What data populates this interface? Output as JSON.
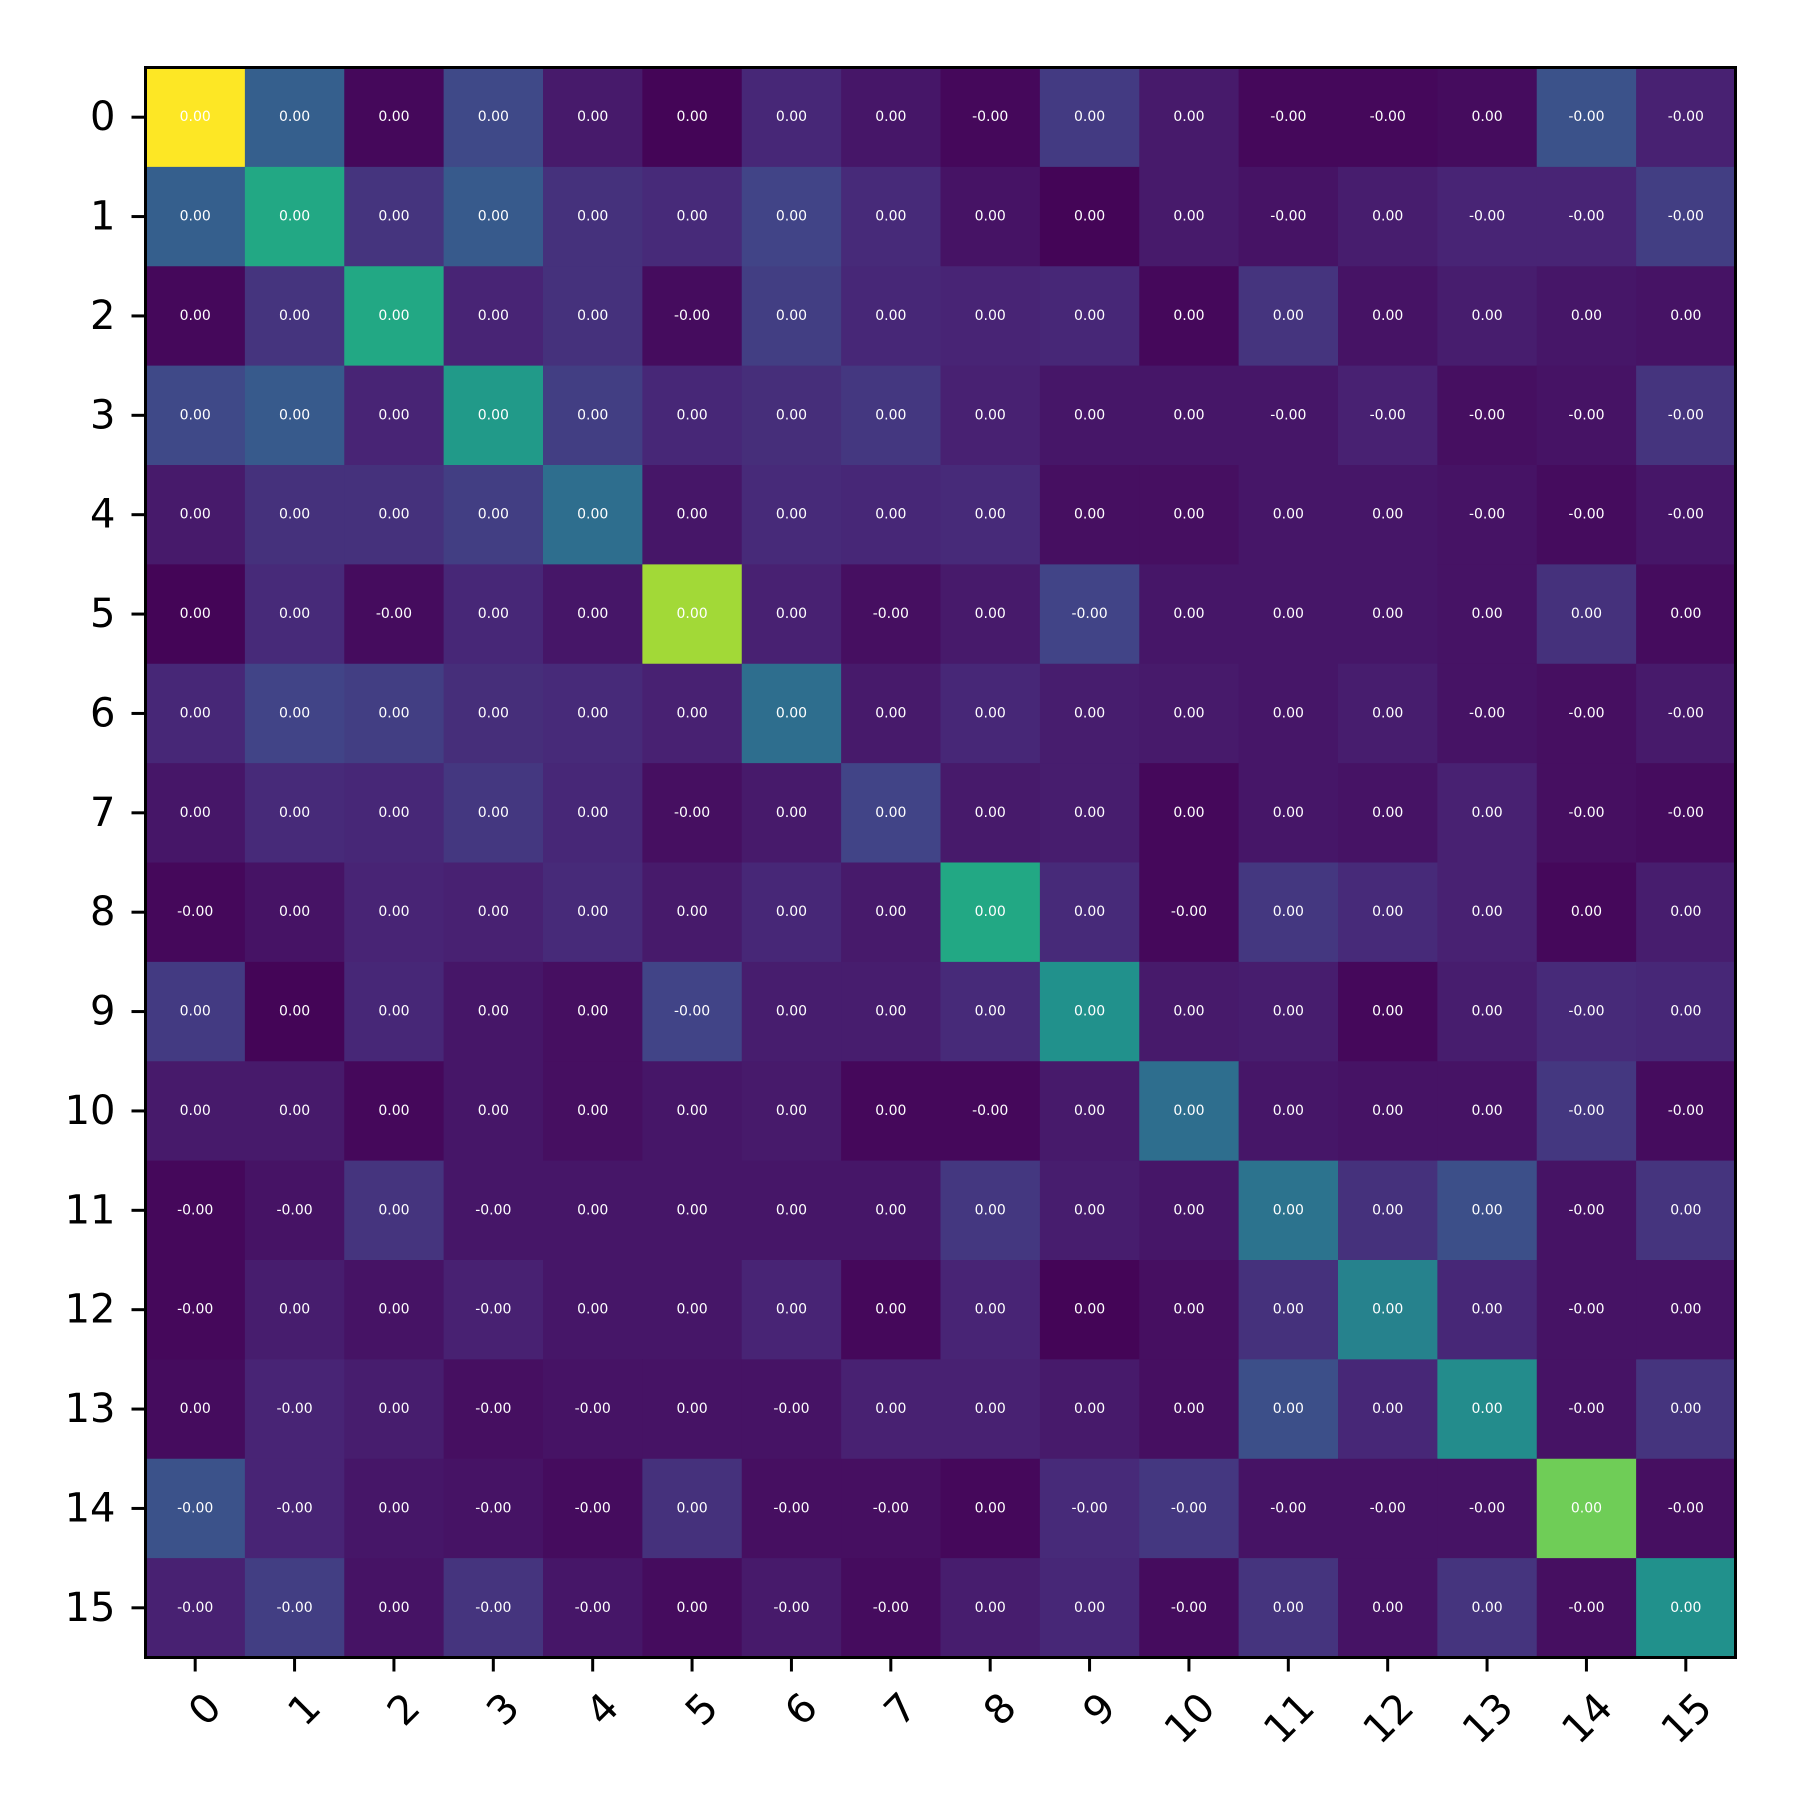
{
  "chart_data": {
    "type": "heatmap",
    "title": "",
    "xlabel": "",
    "ylabel": "",
    "x_categories": [
      "0",
      "1",
      "2",
      "3",
      "4",
      "5",
      "6",
      "7",
      "8",
      "9",
      "10",
      "11",
      "12",
      "13",
      "14",
      "15"
    ],
    "y_categories": [
      "0",
      "1",
      "2",
      "3",
      "4",
      "5",
      "6",
      "7",
      "8",
      "9",
      "10",
      "11",
      "12",
      "13",
      "14",
      "15"
    ],
    "colormap": "viridis",
    "color_intensity": [
      [
        1.0,
        0.3,
        0.02,
        0.22,
        0.07,
        0.01,
        0.11,
        0.06,
        0.02,
        0.17,
        0.07,
        0.02,
        0.02,
        0.03,
        0.25,
        0.09
      ],
      [
        0.3,
        0.6,
        0.15,
        0.28,
        0.14,
        0.12,
        0.2,
        0.12,
        0.05,
        0.01,
        0.07,
        0.05,
        0.08,
        0.1,
        0.1,
        0.18
      ],
      [
        0.02,
        0.15,
        0.6,
        0.1,
        0.14,
        0.03,
        0.18,
        0.11,
        0.1,
        0.11,
        0.02,
        0.15,
        0.05,
        0.08,
        0.06,
        0.05
      ],
      [
        0.22,
        0.28,
        0.1,
        0.54,
        0.18,
        0.11,
        0.13,
        0.16,
        0.09,
        0.06,
        0.06,
        0.06,
        0.09,
        0.04,
        0.05,
        0.15
      ],
      [
        0.07,
        0.14,
        0.14,
        0.18,
        0.36,
        0.06,
        0.12,
        0.11,
        0.12,
        0.04,
        0.04,
        0.06,
        0.06,
        0.05,
        0.03,
        0.06
      ],
      [
        0.01,
        0.12,
        0.03,
        0.11,
        0.06,
        0.86,
        0.09,
        0.04,
        0.07,
        0.2,
        0.06,
        0.06,
        0.06,
        0.05,
        0.14,
        0.03
      ],
      [
        0.11,
        0.2,
        0.18,
        0.13,
        0.12,
        0.09,
        0.36,
        0.07,
        0.11,
        0.08,
        0.07,
        0.06,
        0.08,
        0.05,
        0.04,
        0.07
      ],
      [
        0.06,
        0.12,
        0.11,
        0.16,
        0.11,
        0.04,
        0.07,
        0.2,
        0.07,
        0.08,
        0.02,
        0.06,
        0.05,
        0.09,
        0.04,
        0.03
      ],
      [
        0.02,
        0.05,
        0.1,
        0.09,
        0.12,
        0.07,
        0.11,
        0.07,
        0.6,
        0.12,
        0.02,
        0.16,
        0.12,
        0.09,
        0.02,
        0.08
      ],
      [
        0.17,
        0.01,
        0.11,
        0.06,
        0.04,
        0.2,
        0.08,
        0.08,
        0.12,
        0.5,
        0.07,
        0.08,
        0.02,
        0.08,
        0.12,
        0.11
      ],
      [
        0.07,
        0.07,
        0.02,
        0.06,
        0.04,
        0.06,
        0.07,
        0.02,
        0.02,
        0.07,
        0.36,
        0.06,
        0.05,
        0.05,
        0.16,
        0.03
      ],
      [
        0.02,
        0.05,
        0.15,
        0.06,
        0.06,
        0.06,
        0.06,
        0.06,
        0.16,
        0.08,
        0.06,
        0.38,
        0.14,
        0.24,
        0.05,
        0.15
      ],
      [
        0.02,
        0.08,
        0.05,
        0.09,
        0.06,
        0.06,
        0.1,
        0.02,
        0.1,
        0.01,
        0.04,
        0.14,
        0.44,
        0.11,
        0.05,
        0.05
      ],
      [
        0.03,
        0.1,
        0.08,
        0.04,
        0.05,
        0.05,
        0.05,
        0.09,
        0.09,
        0.07,
        0.04,
        0.24,
        0.11,
        0.48,
        0.05,
        0.15
      ],
      [
        0.25,
        0.1,
        0.06,
        0.05,
        0.03,
        0.14,
        0.04,
        0.04,
        0.02,
        0.12,
        0.16,
        0.05,
        0.05,
        0.05,
        0.78,
        0.04
      ],
      [
        0.09,
        0.18,
        0.05,
        0.15,
        0.06,
        0.03,
        0.07,
        0.03,
        0.08,
        0.11,
        0.03,
        0.15,
        0.05,
        0.15,
        0.04,
        0.5
      ]
    ],
    "annotations": [
      [
        "0.00",
        "0.00",
        "0.00",
        "0.00",
        "0.00",
        "0.00",
        "0.00",
        "0.00",
        "-0.00",
        "0.00",
        "0.00",
        "-0.00",
        "-0.00",
        "0.00",
        "-0.00",
        "-0.00"
      ],
      [
        "0.00",
        "0.00",
        "0.00",
        "0.00",
        "0.00",
        "0.00",
        "0.00",
        "0.00",
        "0.00",
        "0.00",
        "0.00",
        "-0.00",
        "0.00",
        "-0.00",
        "-0.00",
        "-0.00"
      ],
      [
        "0.00",
        "0.00",
        "0.00",
        "0.00",
        "0.00",
        "-0.00",
        "0.00",
        "0.00",
        "0.00",
        "0.00",
        "0.00",
        "0.00",
        "0.00",
        "0.00",
        "0.00",
        "0.00"
      ],
      [
        "0.00",
        "0.00",
        "0.00",
        "0.00",
        "0.00",
        "0.00",
        "0.00",
        "0.00",
        "0.00",
        "0.00",
        "0.00",
        "-0.00",
        "-0.00",
        "-0.00",
        "-0.00",
        "-0.00"
      ],
      [
        "0.00",
        "0.00",
        "0.00",
        "0.00",
        "0.00",
        "0.00",
        "0.00",
        "0.00",
        "0.00",
        "0.00",
        "0.00",
        "0.00",
        "0.00",
        "-0.00",
        "-0.00",
        "-0.00"
      ],
      [
        "0.00",
        "0.00",
        "-0.00",
        "0.00",
        "0.00",
        "0.00",
        "0.00",
        "-0.00",
        "0.00",
        "-0.00",
        "0.00",
        "0.00",
        "0.00",
        "0.00",
        "0.00",
        "0.00"
      ],
      [
        "0.00",
        "0.00",
        "0.00",
        "0.00",
        "0.00",
        "0.00",
        "0.00",
        "0.00",
        "0.00",
        "0.00",
        "0.00",
        "0.00",
        "0.00",
        "-0.00",
        "-0.00",
        "-0.00"
      ],
      [
        "0.00",
        "0.00",
        "0.00",
        "0.00",
        "0.00",
        "-0.00",
        "0.00",
        "0.00",
        "0.00",
        "0.00",
        "0.00",
        "0.00",
        "0.00",
        "0.00",
        "-0.00",
        "-0.00"
      ],
      [
        "-0.00",
        "0.00",
        "0.00",
        "0.00",
        "0.00",
        "0.00",
        "0.00",
        "0.00",
        "0.00",
        "0.00",
        "-0.00",
        "0.00",
        "0.00",
        "0.00",
        "0.00",
        "0.00"
      ],
      [
        "0.00",
        "0.00",
        "0.00",
        "0.00",
        "0.00",
        "-0.00",
        "0.00",
        "0.00",
        "0.00",
        "0.00",
        "0.00",
        "0.00",
        "0.00",
        "0.00",
        "-0.00",
        "0.00"
      ],
      [
        "0.00",
        "0.00",
        "0.00",
        "0.00",
        "0.00",
        "0.00",
        "0.00",
        "0.00",
        "-0.00",
        "0.00",
        "0.00",
        "0.00",
        "0.00",
        "0.00",
        "-0.00",
        "-0.00"
      ],
      [
        "-0.00",
        "-0.00",
        "0.00",
        "-0.00",
        "0.00",
        "0.00",
        "0.00",
        "0.00",
        "0.00",
        "0.00",
        "0.00",
        "0.00",
        "0.00",
        "0.00",
        "-0.00",
        "0.00"
      ],
      [
        "-0.00",
        "0.00",
        "0.00",
        "-0.00",
        "0.00",
        "0.00",
        "0.00",
        "0.00",
        "0.00",
        "0.00",
        "0.00",
        "0.00",
        "0.00",
        "0.00",
        "-0.00",
        "0.00"
      ],
      [
        "0.00",
        "-0.00",
        "0.00",
        "-0.00",
        "-0.00",
        "0.00",
        "-0.00",
        "0.00",
        "0.00",
        "0.00",
        "0.00",
        "0.00",
        "0.00",
        "0.00",
        "-0.00",
        "0.00"
      ],
      [
        "-0.00",
        "-0.00",
        "0.00",
        "-0.00",
        "-0.00",
        "0.00",
        "-0.00",
        "-0.00",
        "0.00",
        "-0.00",
        "-0.00",
        "-0.00",
        "-0.00",
        "-0.00",
        "0.00",
        "-0.00"
      ],
      [
        "-0.00",
        "-0.00",
        "0.00",
        "-0.00",
        "-0.00",
        "0.00",
        "-0.00",
        "-0.00",
        "0.00",
        "0.00",
        "-0.00",
        "0.00",
        "0.00",
        "0.00",
        "-0.00",
        "0.00"
      ]
    ],
    "colorbar": false,
    "grid": false
  }
}
